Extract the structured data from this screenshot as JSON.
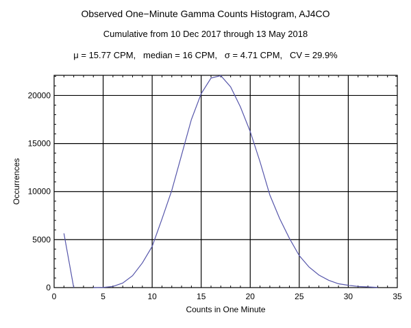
{
  "chart_data": {
    "type": "line",
    "title": "Observed One−Minute Gamma Counts Histogram, AJ4CO",
    "subtitle": "Cumulative from 10 Dec 2017 through 13 May 2018",
    "stats_line": "μ = 15.77 CPM,   median = 16 CPM,   σ = 4.71 CPM,   CV = 29.9%",
    "xlabel": "Counts in One Minute",
    "ylabel": "Occurrences",
    "xlim": [
      0,
      35
    ],
    "ylim": [
      0,
      22100
    ],
    "xticks": [
      0,
      5,
      10,
      15,
      20,
      25,
      30,
      35
    ],
    "yticks": [
      0,
      5000,
      10000,
      15000,
      20000
    ],
    "grid": true,
    "line_color": "#5555aa",
    "series": [
      {
        "name": "low",
        "x": [
          1,
          2
        ],
        "y": [
          5650,
          0
        ]
      },
      {
        "name": "main",
        "x": [
          4,
          5,
          6,
          7,
          8,
          9,
          10,
          11,
          12,
          13,
          14,
          15,
          16,
          17,
          18,
          19,
          20,
          21,
          22,
          23,
          24,
          25,
          26,
          27,
          28,
          29,
          30,
          31,
          32,
          33
        ],
        "y": [
          0,
          20,
          120,
          476,
          1240,
          2570,
          4290,
          7140,
          10120,
          13810,
          17500,
          20190,
          21810,
          22070,
          20900,
          18810,
          16240,
          13100,
          9640,
          7190,
          5120,
          3330,
          2140,
          1310,
          760,
          400,
          240,
          120,
          70,
          20
        ]
      }
    ]
  }
}
